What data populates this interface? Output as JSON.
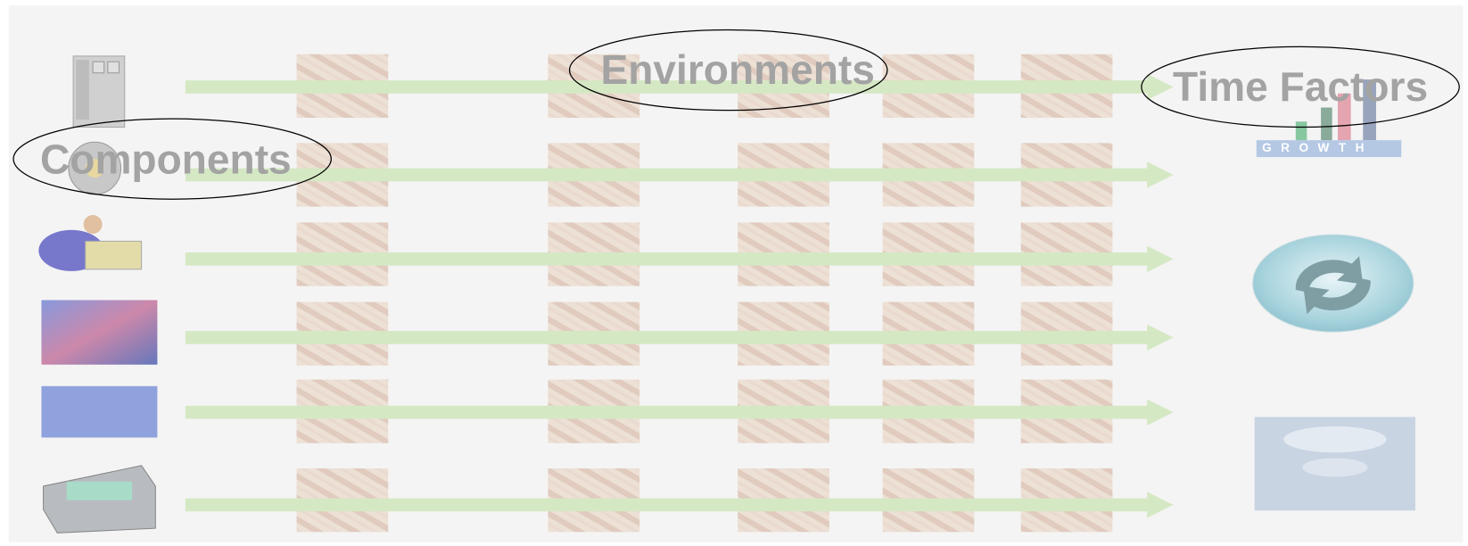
{
  "labels": {
    "environments": "Environments",
    "time_factors": "Time Factors",
    "components": "Components"
  },
  "growth_icon": "GROWTH"
}
